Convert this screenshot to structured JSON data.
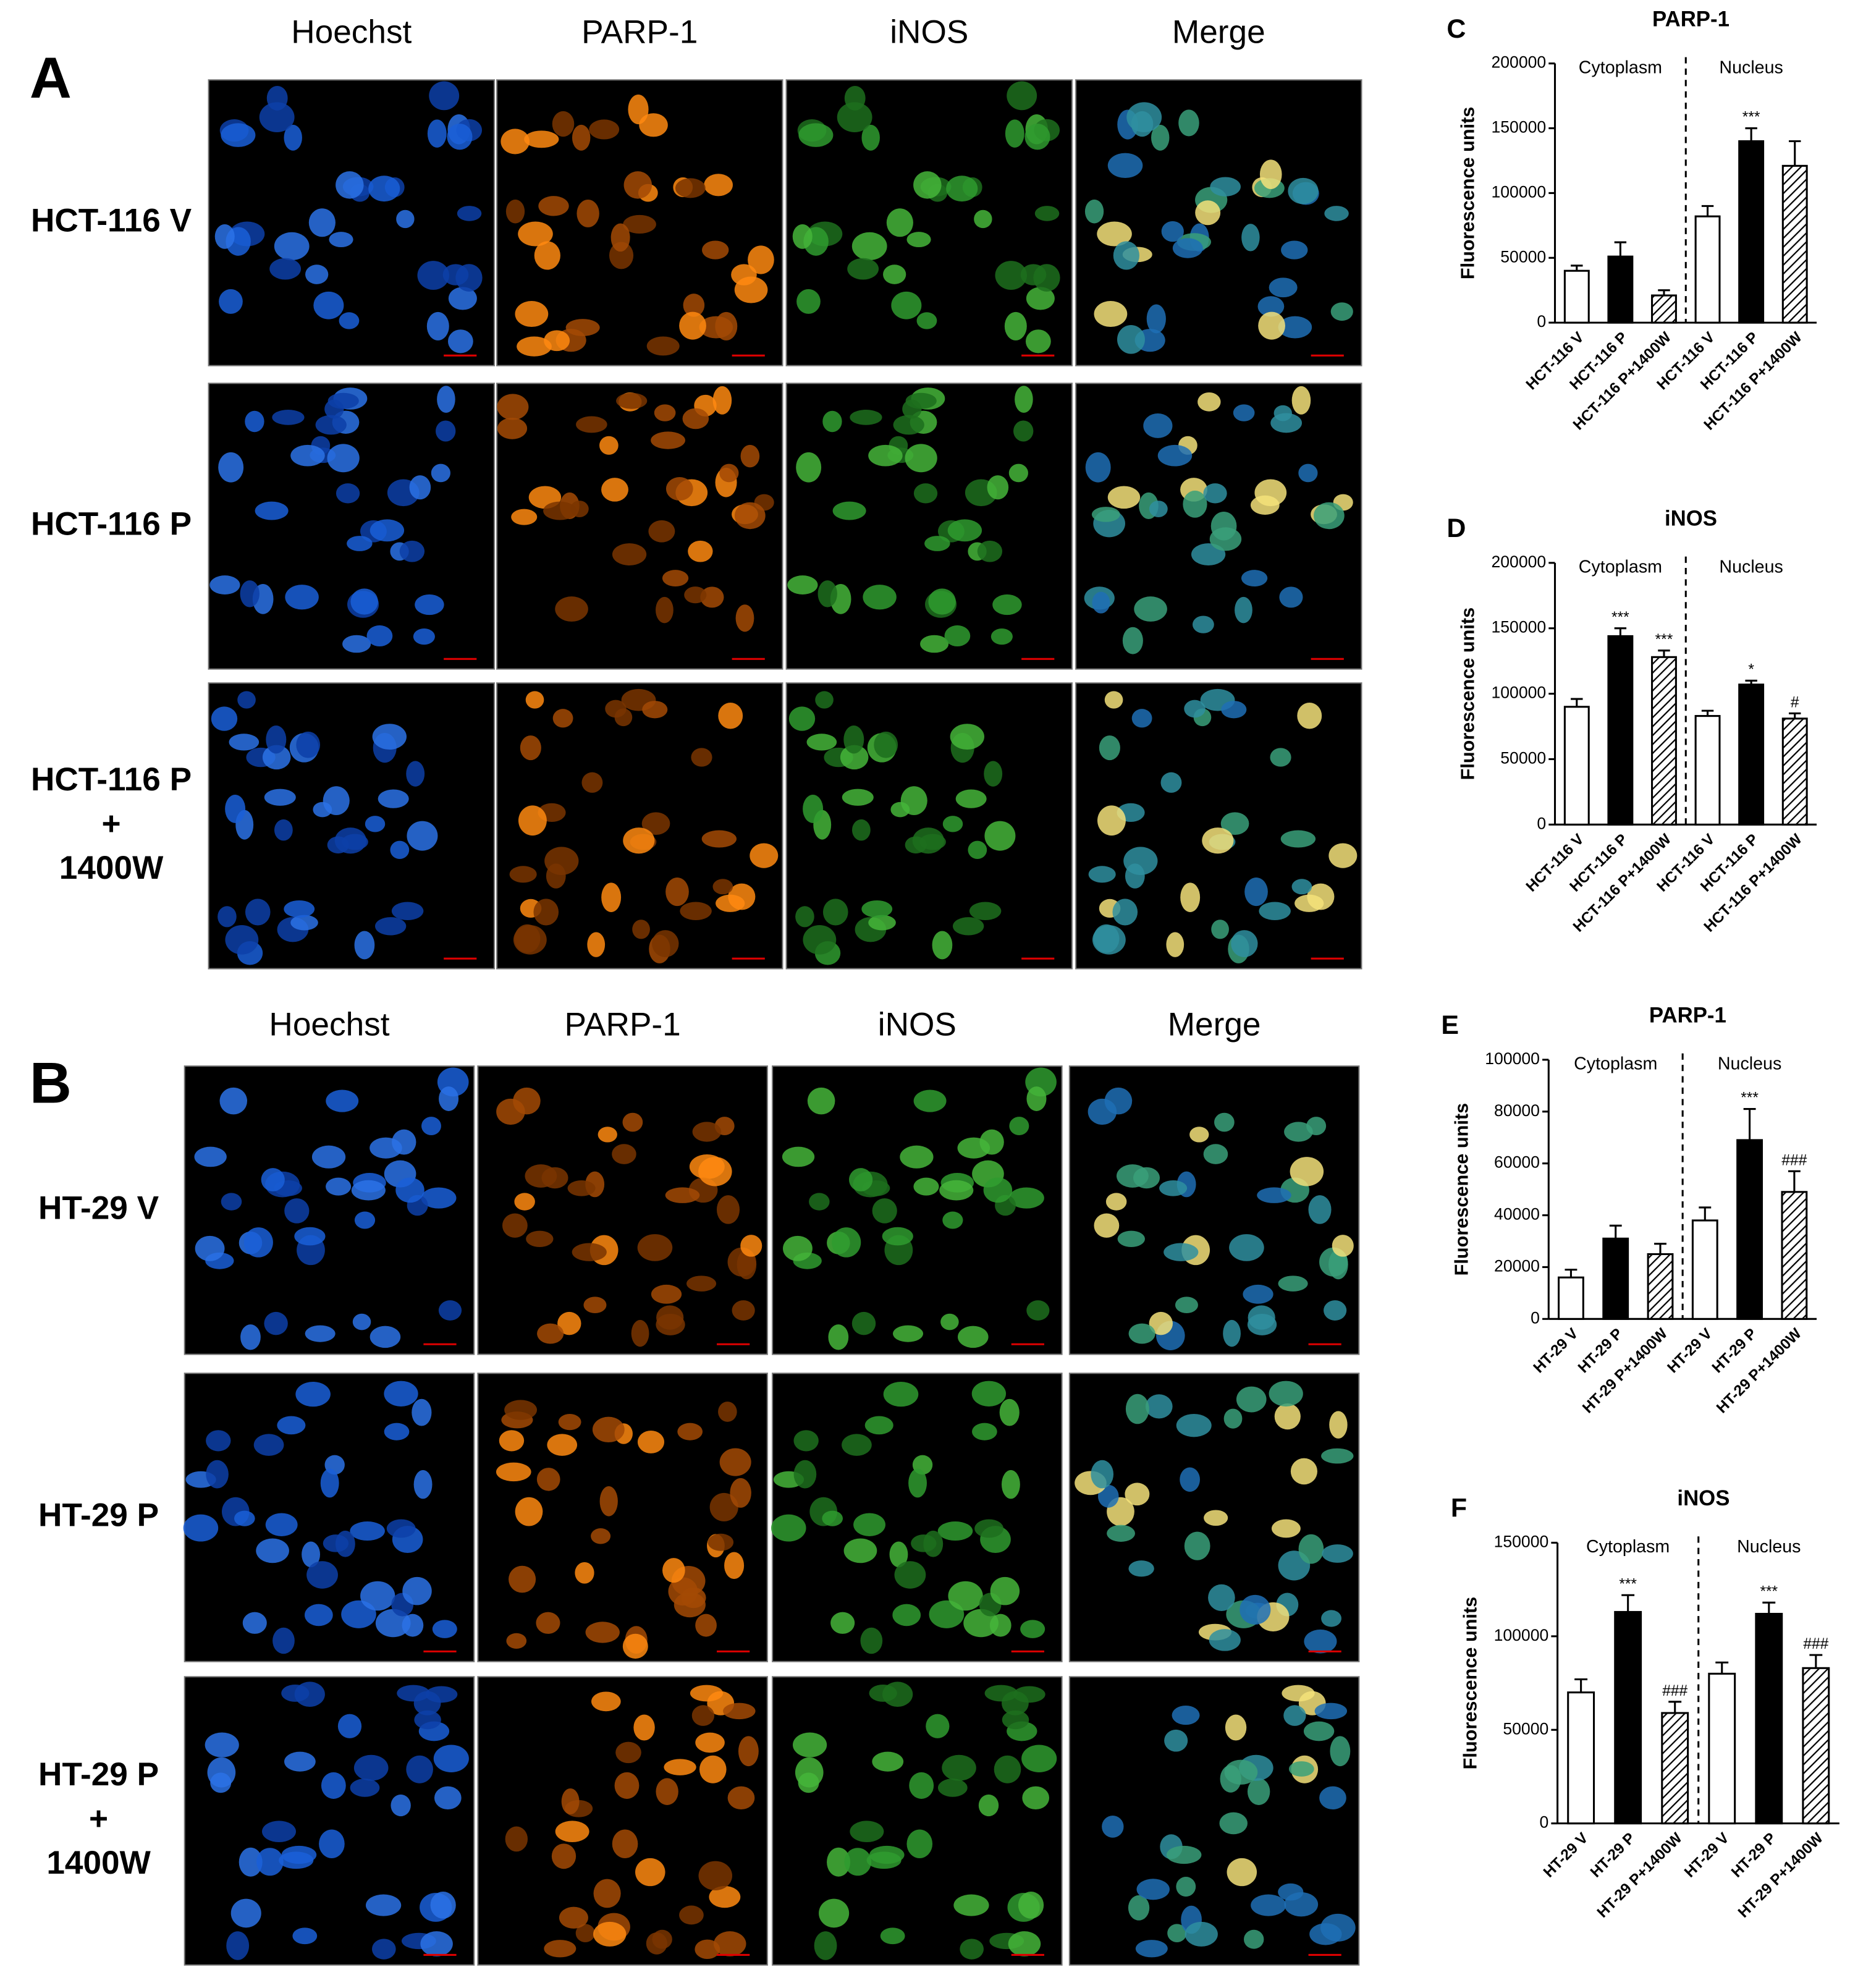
{
  "panels": [
    {
      "label": "A",
      "columns": [
        "Hoechst",
        "PARP-1",
        "iNOS",
        "Merge"
      ],
      "rows": [
        [
          "HCT-116 V"
        ],
        [
          "HCT-116 P"
        ],
        [
          "HCT-116 P",
          "+",
          "1400W"
        ]
      ]
    },
    {
      "label": "B",
      "columns": [
        "Hoechst",
        "PARP-1",
        "iNOS",
        "Merge"
      ],
      "rows": [
        [
          "HT-29 V"
        ],
        [
          "HT-29 P"
        ],
        [
          "HT-29 P",
          "+",
          "1400W"
        ]
      ]
    }
  ],
  "chart_data": [
    {
      "type": "bar",
      "label": "C",
      "title": "PARP-1",
      "ylabel": "Fluorescence units",
      "regions": [
        "Cytoplasm",
        "Nucleus"
      ],
      "categories": [
        "HCT-116 V",
        "HCT-116 P",
        "HCT-116 P+1400W",
        "HCT-116 V",
        "HCT-116 P",
        "HCT-116 P+1400W"
      ],
      "values": [
        40000,
        51000,
        21000,
        82000,
        140000,
        121000
      ],
      "errors": [
        4000,
        11000,
        4000,
        8000,
        10000,
        19000
      ],
      "annotations": [
        null,
        null,
        null,
        null,
        "***",
        null
      ],
      "bar_styles": [
        "open",
        "solid",
        "hatched",
        "open",
        "solid",
        "hatched"
      ],
      "ylim": [
        0,
        200000
      ],
      "yticks": [
        0,
        50000,
        100000,
        150000,
        200000
      ]
    },
    {
      "type": "bar",
      "label": "D",
      "title": "iNOS",
      "ylabel": "Fluorescence units",
      "regions": [
        "Cytoplasm",
        "Nucleus"
      ],
      "categories": [
        "HCT-116 V",
        "HCT-116 P",
        "HCT-116 P+1400W",
        "HCT-116 V",
        "HCT-116 P",
        "HCT-116 P+1400W"
      ],
      "values": [
        90000,
        144000,
        128000,
        83000,
        107000,
        81000
      ],
      "errors": [
        6000,
        6000,
        5000,
        4000,
        3000,
        4000
      ],
      "annotations": [
        null,
        "***",
        "***",
        null,
        "*",
        "#"
      ],
      "bar_styles": [
        "open",
        "solid",
        "hatched",
        "open",
        "solid",
        "hatched"
      ],
      "ylim": [
        0,
        200000
      ],
      "yticks": [
        0,
        50000,
        100000,
        150000,
        200000
      ]
    },
    {
      "type": "bar",
      "label": "E",
      "title": "PARP-1",
      "ylabel": "Fluorescence units",
      "regions": [
        "Cytoplasm",
        "Nucleus"
      ],
      "categories": [
        "HT-29 V",
        "HT-29 P",
        "HT-29 P+1400W",
        "HT-29 V",
        "HT-29 P",
        "HT-29 P+1400W"
      ],
      "values": [
        16000,
        31000,
        25000,
        38000,
        69000,
        49000
      ],
      "errors": [
        3000,
        5000,
        4000,
        5000,
        12000,
        8000
      ],
      "annotations": [
        null,
        null,
        null,
        null,
        "***",
        "###"
      ],
      "bar_styles": [
        "open",
        "solid",
        "hatched",
        "open",
        "solid",
        "hatched"
      ],
      "ylim": [
        0,
        100000
      ],
      "yticks": [
        0,
        20000,
        40000,
        60000,
        80000,
        100000
      ]
    },
    {
      "type": "bar",
      "label": "F",
      "title": "iNOS",
      "ylabel": "Fluorescence units",
      "regions": [
        "Cytoplasm",
        "Nucleus"
      ],
      "categories": [
        "HT-29 V",
        "HT-29 P",
        "HT-29 P+1400W",
        "HT-29 V",
        "HT-29 P",
        "HT-29 P+1400W"
      ],
      "values": [
        70000,
        113000,
        59000,
        80000,
        112000,
        83000
      ],
      "errors": [
        7000,
        9000,
        6000,
        6000,
        6000,
        7000
      ],
      "annotations": [
        null,
        "***",
        "###",
        null,
        "***",
        "###"
      ],
      "bar_styles": [
        "open",
        "solid",
        "hatched",
        "open",
        "solid",
        "hatched"
      ],
      "ylim": [
        0,
        150000
      ],
      "yticks": [
        0,
        50000,
        100000,
        150000
      ]
    }
  ]
}
